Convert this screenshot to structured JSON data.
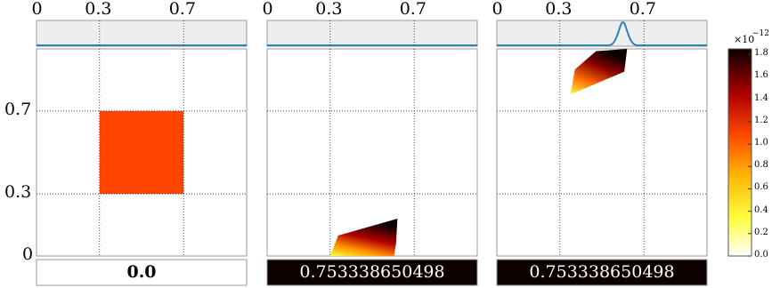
{
  "colors": {
    "marginal_line": "#2b83ba",
    "marginal_bg": "#eeeeee",
    "square_fill": "#ff4500",
    "grid": "#000000",
    "frame": "#999999",
    "time_box_dark": "#0d0000"
  },
  "colormap": "hot-reversed",
  "chart_data": [
    {
      "type": "heatmap",
      "panel": "left",
      "xticks": [
        "0",
        "0.3",
        "0.7"
      ],
      "yticks": [
        "0.7",
        "0.3",
        "0"
      ],
      "xlim": [
        0,
        1
      ],
      "ylim": [
        0,
        1
      ],
      "grid": true,
      "marginal": "flat",
      "density_region": {
        "shape": "square",
        "x": [
          0.3,
          0.7
        ],
        "y": [
          0.3,
          0.7
        ]
      },
      "time_label": "0.0"
    },
    {
      "type": "heatmap",
      "panel": "middle",
      "xticks": [
        "0",
        "0.3",
        "0.7"
      ],
      "xlim": [
        0,
        1
      ],
      "ylim": [
        0,
        1
      ],
      "grid": true,
      "marginal": "flat",
      "density_region": {
        "shape": "skewed-band",
        "x": [
          0.3,
          0.62
        ],
        "y": [
          0.0,
          0.18
        ]
      },
      "time_label": "0.753338650498"
    },
    {
      "type": "heatmap",
      "panel": "right",
      "xticks": [
        "0",
        "0.3",
        "0.7"
      ],
      "xlim": [
        0,
        1
      ],
      "ylim": [
        0,
        1
      ],
      "grid": true,
      "marginal": "peaked",
      "marginal_peak_x": 0.6,
      "density_region": {
        "shape": "skewed-band",
        "x": [
          0.35,
          0.62
        ],
        "y": [
          0.78,
          1.0
        ]
      },
      "time_label": "0.753338650498"
    }
  ],
  "colorbar": {
    "multiplier": "×10",
    "exponent": "−12",
    "ticks": [
      "1.8",
      "1.6",
      "1.4",
      "1.2",
      "1.0",
      "0.8",
      "0.6",
      "0.4",
      "0.2",
      "0.0"
    ],
    "range": [
      0.0,
      1.85
    ]
  }
}
